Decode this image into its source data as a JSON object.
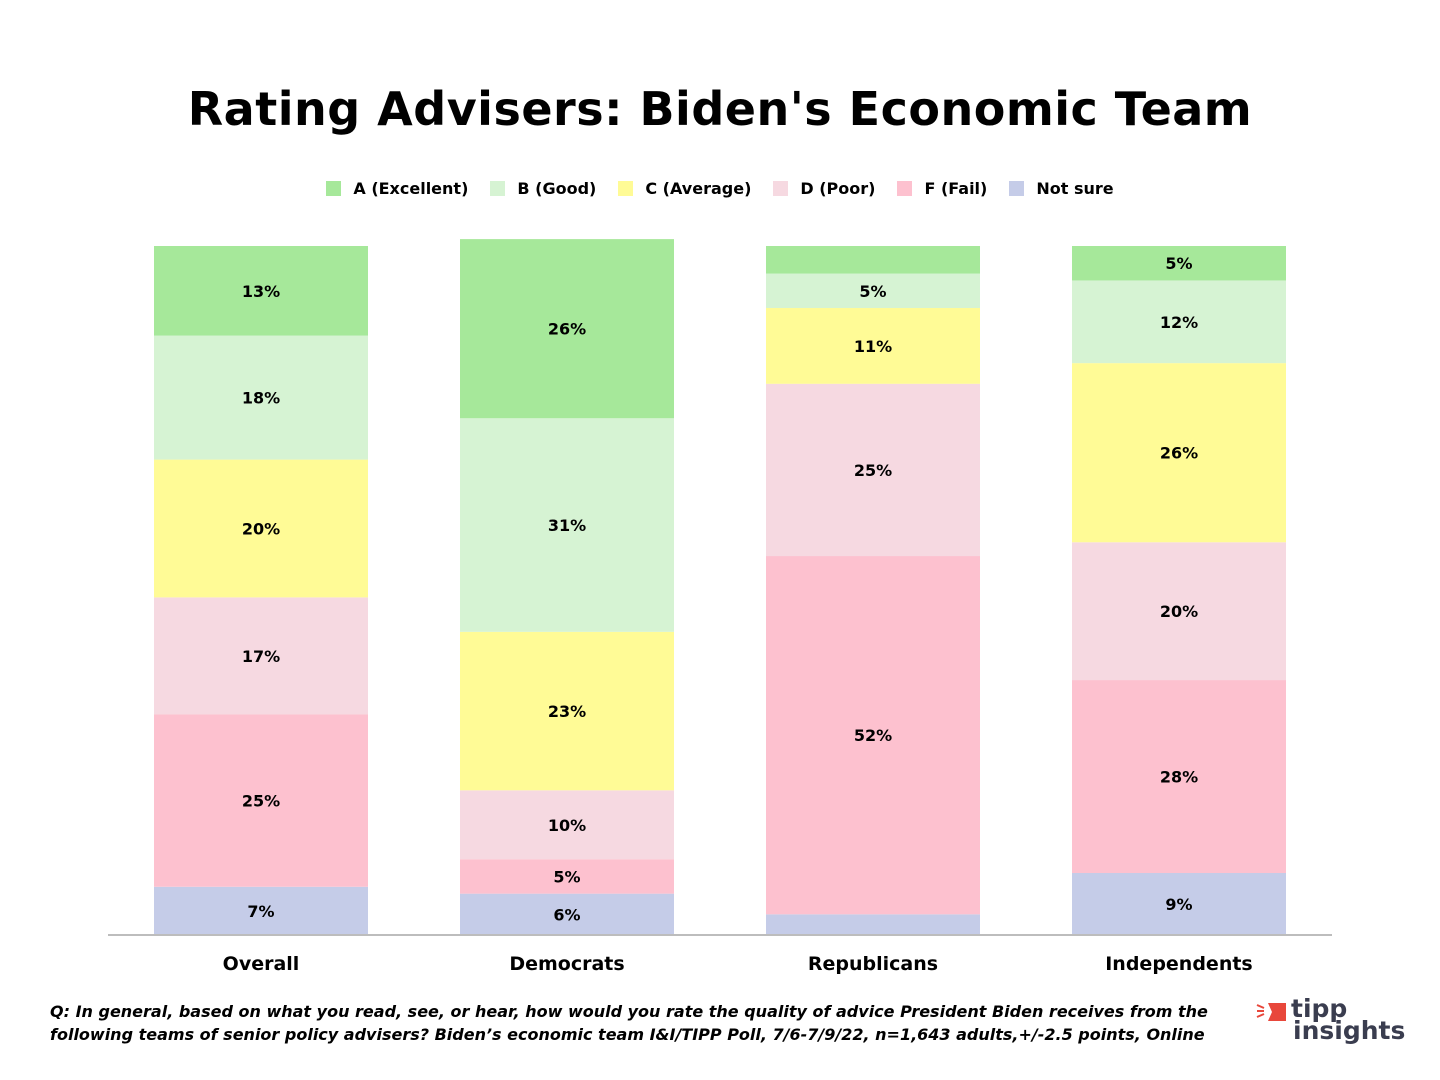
{
  "chart_data": {
    "type": "bar",
    "stacked": true,
    "title": "Rating Advisers: Biden's Economic Team",
    "categories": [
      "Overall",
      "Democrats",
      "Republicans",
      "Independents"
    ],
    "series": [
      {
        "name": "Not sure",
        "color": "#c5cce8",
        "values": [
          7,
          6,
          3,
          9
        ],
        "labels": [
          "7%",
          "6%",
          null,
          "9%"
        ]
      },
      {
        "name": "F (Fail)",
        "color": "#fdc1cf",
        "values": [
          25,
          5,
          52,
          28
        ],
        "labels": [
          "25%",
          "5%",
          "52%",
          "28%"
        ]
      },
      {
        "name": "D (Poor)",
        "color": "#f6d9e1",
        "values": [
          17,
          10,
          25,
          20
        ],
        "labels": [
          "17%",
          "10%",
          "25%",
          "20%"
        ]
      },
      {
        "name": "C (Average)",
        "color": "#fffb96",
        "values": [
          20,
          23,
          11,
          26
        ],
        "labels": [
          "20%",
          "23%",
          "11%",
          "26%"
        ]
      },
      {
        "name": "B (Good)",
        "color": "#d6f3d3",
        "values": [
          18,
          31,
          5,
          12
        ],
        "labels": [
          "18%",
          "31%",
          "5%",
          "12%"
        ]
      },
      {
        "name": "A (Excellent)",
        "color": "#a6e89a",
        "values": [
          13,
          26,
          4,
          5
        ],
        "labels": [
          "13%",
          "26%",
          null,
          "5%"
        ]
      }
    ],
    "legend_order": [
      "A (Excellent)",
      "B (Good)",
      "C (Average)",
      "D (Poor)",
      "F (Fail)",
      "Not sure"
    ],
    "legend_placement": "top-center",
    "xlabel": "",
    "ylabel": "",
    "ylim": [
      0,
      100
    ],
    "grid": false
  },
  "footer": {
    "line1": "Q:  In general, based on what you read, see, or hear, how would you rate the quality of advice President Biden receives from the",
    "line2": "following teams of senior policy advisers? Biden’s economic team I&I/TIPP Poll, 7/6-7/9/22, n=1,643 adults,+/-2.5 points, Online"
  },
  "logo": {
    "line1": "tipp",
    "line2": "insights"
  }
}
